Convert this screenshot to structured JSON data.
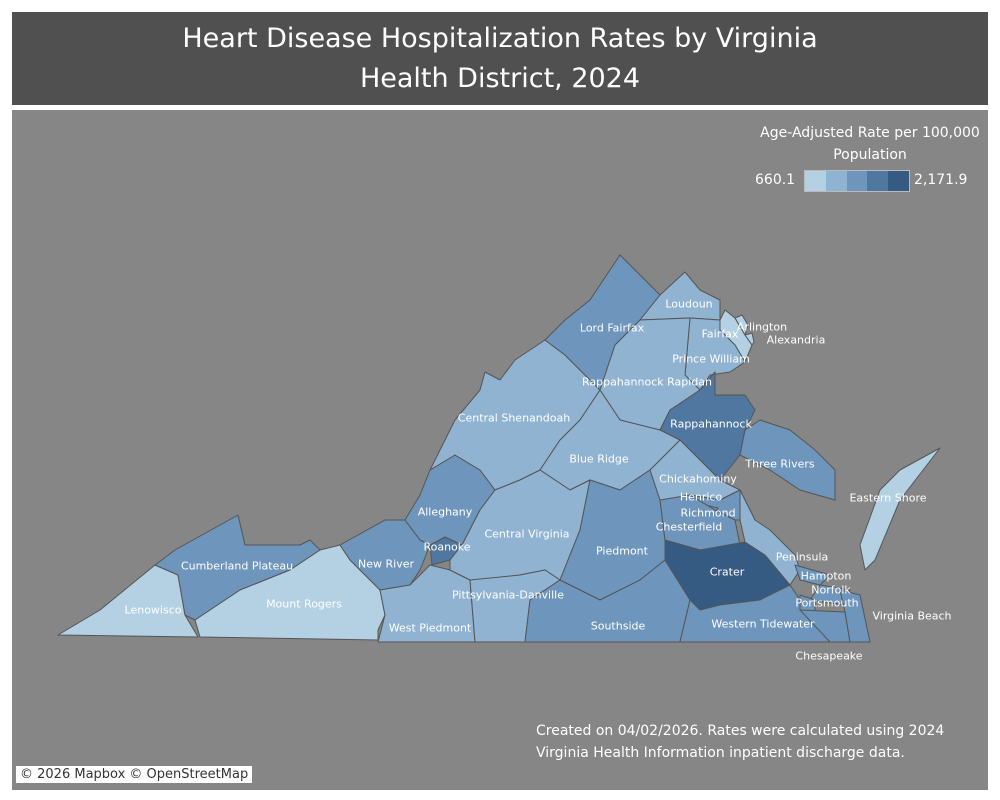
{
  "title": "Heart Disease Hospitalization Rates by Virginia Health District, 2024",
  "legend": {
    "title": "Age-Adjusted Rate per 100,000 Population",
    "min": "660.1",
    "max": "2,171.9",
    "colors": [
      "#b3d1e2",
      "#8fb3d1",
      "#6e95bb",
      "#4f77a0",
      "#365b83"
    ]
  },
  "districts": [
    {
      "name": "Lenowisco",
      "shade": 1
    },
    {
      "name": "Cumberland Plateau",
      "shade": 3
    },
    {
      "name": "Mount Rogers",
      "shade": 1
    },
    {
      "name": "New River",
      "shade": 3
    },
    {
      "name": "West Piedmont",
      "shade": 2
    },
    {
      "name": "Roanoke",
      "shade": 4
    },
    {
      "name": "Alleghany",
      "shade": 3
    },
    {
      "name": "Central Shenandoah",
      "shade": 2
    },
    {
      "name": "Lord Fairfax",
      "shade": 3
    },
    {
      "name": "Loudoun",
      "shade": 2
    },
    {
      "name": "Fairfax",
      "shade": 1
    },
    {
      "name": "Arlington",
      "shade": 1
    },
    {
      "name": "Alexandria",
      "shade": 1
    },
    {
      "name": "Prince William",
      "shade": 2
    },
    {
      "name": "Rappahannock Rapidan",
      "shade": 2
    },
    {
      "name": "Rappahannock",
      "shade": 4
    },
    {
      "name": "Three Rivers",
      "shade": 3
    },
    {
      "name": "Blue Ridge",
      "shade": 2
    },
    {
      "name": "Central Virginia",
      "shade": 2
    },
    {
      "name": "Pittsylvania-Danville",
      "shade": 2
    },
    {
      "name": "Piedmont",
      "shade": 3
    },
    {
      "name": "Southside",
      "shade": 3
    },
    {
      "name": "Chickahominy",
      "shade": 2
    },
    {
      "name": "Henrico",
      "shade": 3
    },
    {
      "name": "Richmond",
      "shade": 3
    },
    {
      "name": "Chesterfield",
      "shade": 3
    },
    {
      "name": "Crater",
      "shade": 5
    },
    {
      "name": "Western Tidewater",
      "shade": 3
    },
    {
      "name": "Peninsula",
      "shade": 2
    },
    {
      "name": "Hampton",
      "shade": 3
    },
    {
      "name": "Norfolk",
      "shade": 3
    },
    {
      "name": "Portsmouth",
      "shade": 3
    },
    {
      "name": "Chesapeake",
      "shade": 3
    },
    {
      "name": "Virginia Beach",
      "shade": 3
    },
    {
      "name": "Eastern Shore",
      "shade": 1
    }
  ],
  "note": "Created on 04/02/2026. Rates were calculated using 2024 Virginia Health Information inpatient discharge data.",
  "attribution": "© 2026 Mapbox © OpenStreetMap"
}
